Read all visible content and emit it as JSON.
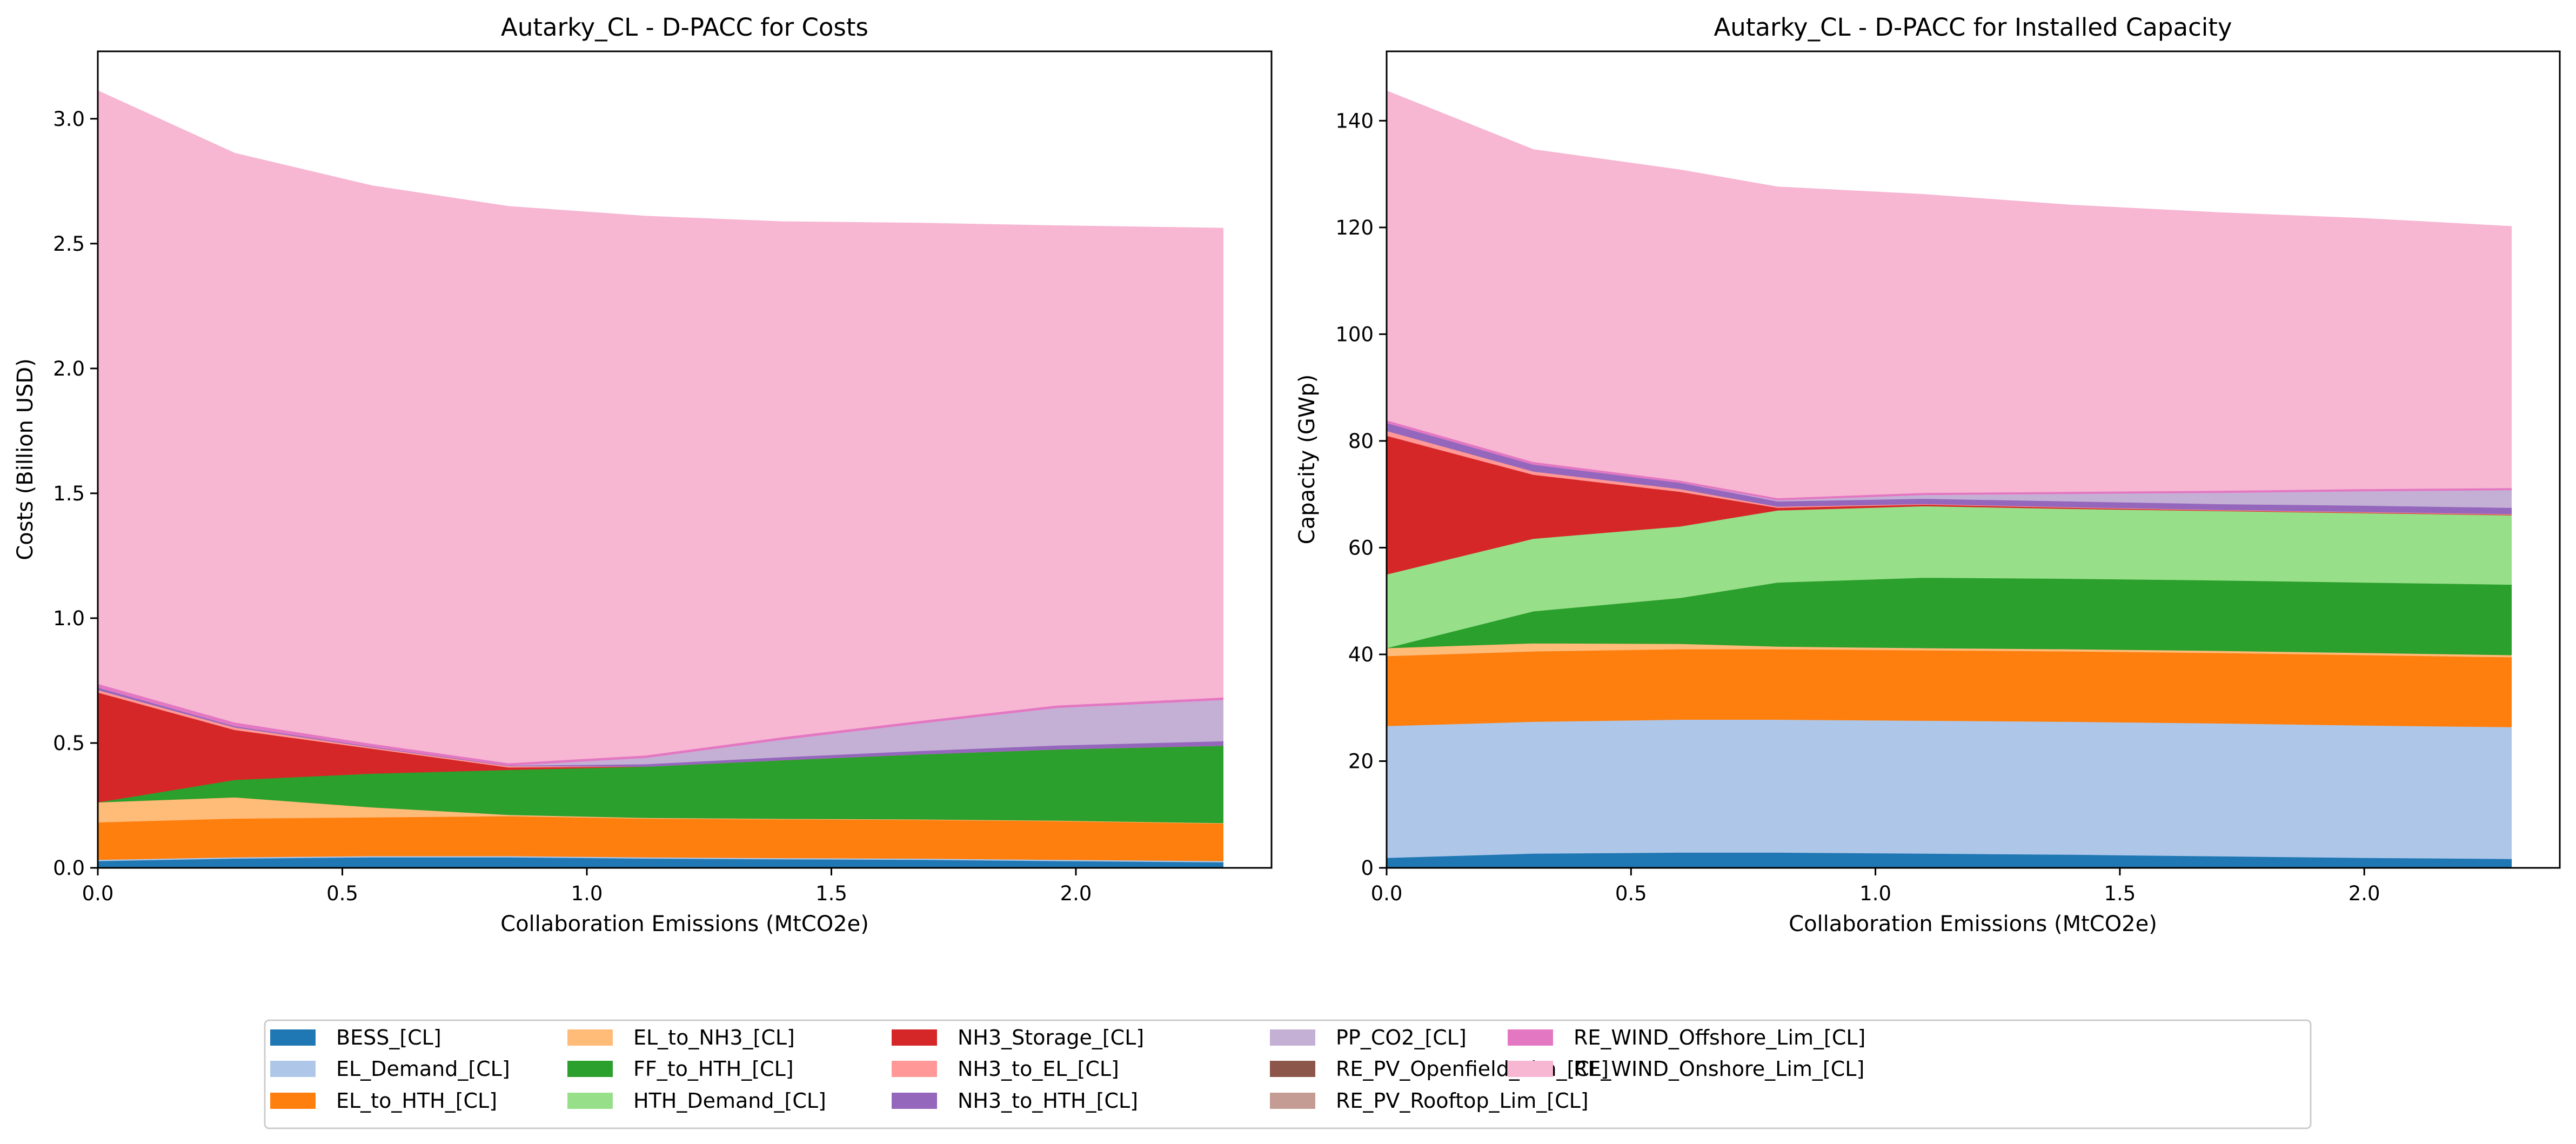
{
  "colors": {
    "BESS_[CL]": "#1f77b4",
    "EL_Demand_[CL]": "#aec7e8",
    "EL_to_HTH_[CL]": "#ff7f0e",
    "EL_to_NH3_[CL]": "#ffbb78",
    "FF_to_HTH_[CL]": "#2ca02c",
    "HTH_Demand_[CL]": "#98df8a",
    "NH3_Storage_[CL]": "#d62728",
    "NH3_to_EL_[CL]": "#ff9896",
    "NH3_to_HTH_[CL]": "#9467bd",
    "PP_CO2_[CL]": "#c5b0d5",
    "RE_PV_Openfield_Lim_[CL]": "#8c564b",
    "RE_PV_Rooftop_Lim_[CL]": "#c49c94",
    "RE_WIND_Offshore_Lim_[CL]": "#e377c2",
    "RE_WIND_Onshore_Lim_[CL]": "#f7b6d2"
  },
  "legend": {
    "columns": 6,
    "placement": "bottom-center",
    "entries": [
      "BESS_[CL]",
      "EL_Demand_[CL]",
      "EL_to_HTH_[CL]",
      "EL_to_NH3_[CL]",
      "FF_to_HTH_[CL]",
      "HTH_Demand_[CL]",
      "NH3_Storage_[CL]",
      "NH3_to_EL_[CL]",
      "NH3_to_HTH_[CL]",
      "PP_CO2_[CL]",
      "RE_PV_Openfield_Lim_[CL]",
      "RE_PV_Rooftop_Lim_[CL]",
      "RE_WIND_Offshore_Lim_[CL]",
      "RE_WIND_Onshore_Lim_[CL]"
    ]
  },
  "chart_data": [
    {
      "type": "area",
      "stacked": true,
      "title": "Autarky_CL - D-PACC for Costs",
      "xlabel": "Collaboration Emissions (MtCO2e)",
      "ylabel": "Costs (Billion USD)",
      "xlim": [
        0,
        2.4
      ],
      "ylim": [
        0,
        3.27
      ],
      "xticks": [
        0.0,
        0.5,
        1.0,
        1.5,
        2.0
      ],
      "xtick_labels": [
        "0.0",
        "0.5",
        "1.0",
        "1.5",
        "2.0"
      ],
      "yticks": [
        0.0,
        0.5,
        1.0,
        1.5,
        2.0,
        2.5,
        3.0
      ],
      "ytick_labels": [
        "0.0",
        "0.5",
        "1.0",
        "1.5",
        "2.0",
        "2.5",
        "3.0"
      ],
      "grid": false,
      "x": [
        0,
        0.28,
        0.56,
        0.84,
        1.12,
        1.4,
        1.68,
        1.96,
        2.3
      ],
      "series": [
        {
          "name": "BESS_[CL]",
          "values": [
            0.03,
            0.04,
            0.045,
            0.045,
            0.04,
            0.037,
            0.035,
            0.03,
            0.025
          ]
        },
        {
          "name": "EL_Demand_[CL]",
          "values": [
            0.005,
            0.005,
            0.005,
            0.005,
            0.005,
            0.005,
            0.005,
            0.005,
            0.005
          ]
        },
        {
          "name": "EL_to_HTH_[CL]",
          "values": [
            0.15,
            0.155,
            0.155,
            0.16,
            0.155,
            0.155,
            0.155,
            0.155,
            0.15
          ]
        },
        {
          "name": "EL_to_NH3_[CL]",
          "values": [
            0.08,
            0.085,
            0.04,
            0.005,
            0.003,
            0.002,
            0.002,
            0.002,
            0.002
          ]
        },
        {
          "name": "FF_to_HTH_[CL]",
          "values": [
            0.0,
            0.07,
            0.135,
            0.18,
            0.205,
            0.235,
            0.26,
            0.285,
            0.31
          ]
        },
        {
          "name": "HTH_Demand_[CL]",
          "values": [
            0.0,
            0.0,
            0.0,
            0.0,
            0.0,
            0.0,
            0.0,
            0.0,
            0.0
          ]
        },
        {
          "name": "NH3_Storage_[CL]",
          "values": [
            0.44,
            0.2,
            0.1,
            0.01,
            0.0,
            0.0,
            0.0,
            0.0,
            0.0
          ]
        },
        {
          "name": "NH3_to_EL_[CL]",
          "values": [
            0.01,
            0.01,
            0.005,
            0.005,
            0.0,
            0.0,
            0.0,
            0.0,
            0.0
          ]
        },
        {
          "name": "NH3_to_HTH_[CL]",
          "values": [
            0.01,
            0.005,
            0.003,
            0.002,
            0.01,
            0.012,
            0.014,
            0.016,
            0.018
          ]
        },
        {
          "name": "PP_CO2_[CL]",
          "values": [
            0.0,
            0.0,
            0.0,
            0.0,
            0.025,
            0.07,
            0.11,
            0.15,
            0.165
          ]
        },
        {
          "name": "RE_PV_Openfield_Lim_[CL]",
          "values": [
            0.0,
            0.0,
            0.0,
            0.0,
            0.0,
            0.0,
            0.0,
            0.0,
            0.0
          ]
        },
        {
          "name": "RE_PV_Rooftop_Lim_[CL]",
          "values": [
            0.0,
            0.0,
            0.0,
            0.0,
            0.0,
            0.0,
            0.0,
            0.0,
            0.0
          ]
        },
        {
          "name": "RE_WIND_Offshore_Lim_[CL]",
          "values": [
            0.015,
            0.015,
            0.012,
            0.01,
            0.01,
            0.01,
            0.01,
            0.01,
            0.01
          ]
        },
        {
          "name": "RE_WIND_Onshore_Lim_[CL]",
          "values": [
            2.37,
            2.275,
            2.23,
            2.225,
            2.155,
            2.06,
            1.989,
            1.917,
            1.875
          ]
        }
      ]
    },
    {
      "type": "area",
      "stacked": true,
      "title": "Autarky_CL - D-PACC for Installed Capacity",
      "xlabel": "Collaboration Emissions (MtCO2e)",
      "ylabel": "Capacity (GWp)",
      "xlim": [
        0,
        2.4
      ],
      "ylim": [
        0,
        153
      ],
      "xticks": [
        0.0,
        0.5,
        1.0,
        1.5,
        2.0
      ],
      "xtick_labels": [
        "0.0",
        "0.5",
        "1.0",
        "1.5",
        "2.0"
      ],
      "yticks": [
        0,
        20,
        40,
        60,
        80,
        100,
        120,
        140
      ],
      "ytick_labels": [
        "0",
        "20",
        "40",
        "60",
        "80",
        "100",
        "120",
        "140"
      ],
      "grid": false,
      "x": [
        0,
        0.3,
        0.6,
        0.8,
        1.1,
        1.4,
        1.7,
        2.0,
        2.3
      ],
      "series": [
        {
          "name": "BESS_[CL]",
          "values": [
            2.0,
            2.8,
            3.0,
            3.0,
            2.8,
            2.6,
            2.3,
            2.0,
            1.8
          ]
        },
        {
          "name": "EL_Demand_[CL]",
          "values": [
            24.7,
            24.7,
            24.9,
            24.9,
            24.9,
            24.9,
            24.9,
            24.8,
            24.7
          ]
        },
        {
          "name": "EL_to_HTH_[CL]",
          "values": [
            13.1,
            13.2,
            13.2,
            13.2,
            13.2,
            13.2,
            13.2,
            13.2,
            13.1
          ]
        },
        {
          "name": "EL_to_NH3_[CL]",
          "values": [
            1.5,
            1.5,
            1.0,
            0.5,
            0.4,
            0.4,
            0.4,
            0.4,
            0.4
          ]
        },
        {
          "name": "FF_to_HTH_[CL]",
          "values": [
            0.0,
            6.0,
            8.6,
            12.0,
            13.2,
            13.2,
            13.2,
            13.2,
            13.2
          ]
        },
        {
          "name": "HTH_Demand_[CL]",
          "values": [
            13.8,
            13.6,
            13.4,
            13.5,
            13.4,
            13.1,
            13.0,
            13.0,
            13.0
          ]
        },
        {
          "name": "NH3_Storage_[CL]",
          "values": [
            26.0,
            12.0,
            6.5,
            0.5,
            0.3,
            0.2,
            0.1,
            0.1,
            0.1
          ]
        },
        {
          "name": "NH3_to_EL_[CL]",
          "values": [
            0.9,
            0.6,
            0.5,
            0.2,
            0.1,
            0.1,
            0.1,
            0.1,
            0.1
          ]
        },
        {
          "name": "NH3_to_HTH_[CL]",
          "values": [
            1.5,
            1.3,
            1.2,
            1.0,
            1.0,
            1.1,
            1.1,
            1.2,
            1.2
          ]
        },
        {
          "name": "PP_CO2_[CL]",
          "values": [
            0.0,
            0.0,
            0.0,
            0.2,
            0.7,
            1.4,
            2.1,
            2.7,
            3.3
          ]
        },
        {
          "name": "RE_PV_Openfield_Lim_[CL]",
          "values": [
            0.0,
            0.0,
            0.0,
            0.0,
            0.0,
            0.0,
            0.0,
            0.0,
            0.0
          ]
        },
        {
          "name": "RE_PV_Rooftop_Lim_[CL]",
          "values": [
            0.0,
            0.0,
            0.0,
            0.0,
            0.0,
            0.0,
            0.0,
            0.0,
            0.0
          ]
        },
        {
          "name": "RE_WIND_Offshore_Lim_[CL]",
          "values": [
            0.5,
            0.5,
            0.4,
            0.4,
            0.4,
            0.4,
            0.4,
            0.4,
            0.4
          ]
        },
        {
          "name": "RE_WIND_Onshore_Lim_[CL]",
          "values": [
            61.5,
            58.3,
            58.0,
            58.1,
            55.7,
            53.5,
            51.9,
            50.5,
            48.8
          ]
        }
      ]
    }
  ]
}
